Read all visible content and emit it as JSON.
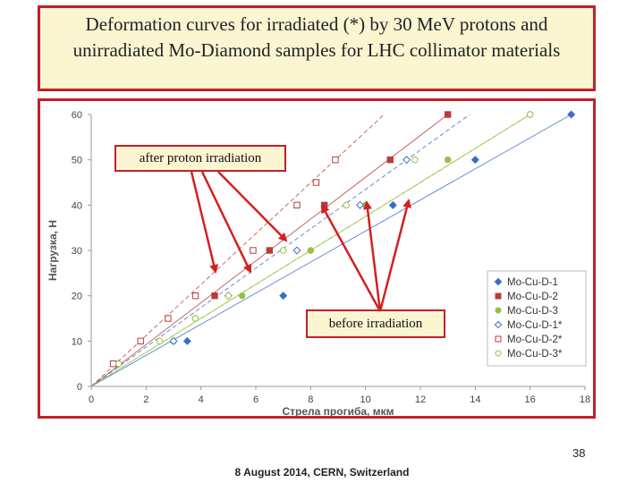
{
  "title": "Deformation curves for irradiated (*) by 30 MeV protons and unirradiated Mo-Diamond samples for LHC collimator materials",
  "callouts": {
    "after": "after proton irradiation",
    "before": "before  irradiation"
  },
  "page_number": "38",
  "footer": "8 August 2014, CERN, Switzerland",
  "colors": {
    "frame_border": "#c0202a",
    "callout_fill": "#fbf5d2",
    "arrow": "#d42020"
  },
  "chart_data": {
    "type": "scatter",
    "xlabel": "Стрела прогиба, мкм",
    "ylabel": "Нагрузка, Н",
    "xlim": [
      0,
      18
    ],
    "ylim": [
      0,
      60
    ],
    "xticks": [
      0,
      2,
      4,
      6,
      8,
      10,
      12,
      14,
      16,
      18
    ],
    "yticks": [
      0,
      10,
      20,
      30,
      40,
      50,
      60
    ],
    "legend_position": "bottom-right",
    "series": [
      {
        "name": "Mo-Cu-D-1",
        "marker": "diamond",
        "filled": true,
        "color": "#3a6dc8",
        "dash": "solid",
        "x": [
          3.5,
          7.0,
          11.0,
          14.0,
          17.5
        ],
        "y": [
          10,
          20,
          40,
          50,
          60
        ]
      },
      {
        "name": "Mo-Cu-D-2",
        "marker": "square",
        "filled": true,
        "color": "#b83c3c",
        "dash": "solid",
        "x": [
          4.5,
          6.5,
          8.5,
          10.9,
          13.0
        ],
        "y": [
          20,
          30,
          40,
          50,
          60
        ]
      },
      {
        "name": "Mo-Cu-D-3",
        "marker": "circle",
        "filled": true,
        "color": "#98c040",
        "dash": "solid",
        "x": [
          3.0,
          5.5,
          8.0,
          10.0,
          13.0,
          16.0
        ],
        "y": [
          10,
          20,
          30,
          40,
          50,
          60
        ]
      },
      {
        "name": "Mo-Cu-D-1*",
        "marker": "diamond",
        "filled": false,
        "color": "#3a6dc8",
        "dash": "dashed",
        "x": [
          1.0,
          3.0,
          5.0,
          7.5,
          9.8,
          11.5
        ],
        "y": [
          5,
          10,
          20,
          30,
          40,
          50
        ]
      },
      {
        "name": "Mo-Cu-D-2*",
        "marker": "square",
        "filled": false,
        "color": "#b83c3c",
        "dash": "dashed",
        "x": [
          0.8,
          1.8,
          2.8,
          3.8,
          5.9,
          7.5,
          8.2,
          8.9
        ],
        "y": [
          5,
          10,
          15,
          20,
          30,
          40,
          45,
          50
        ]
      },
      {
        "name": "Mo-Cu-D-3*",
        "marker": "circle",
        "filled": false,
        "color": "#98c040",
        "dash": "dashed",
        "x": [
          1.0,
          2.5,
          3.8,
          5.0,
          7.0,
          9.3,
          11.8,
          16.0
        ],
        "y": [
          5,
          10,
          15,
          20,
          30,
          40,
          50,
          60
        ]
      }
    ]
  }
}
